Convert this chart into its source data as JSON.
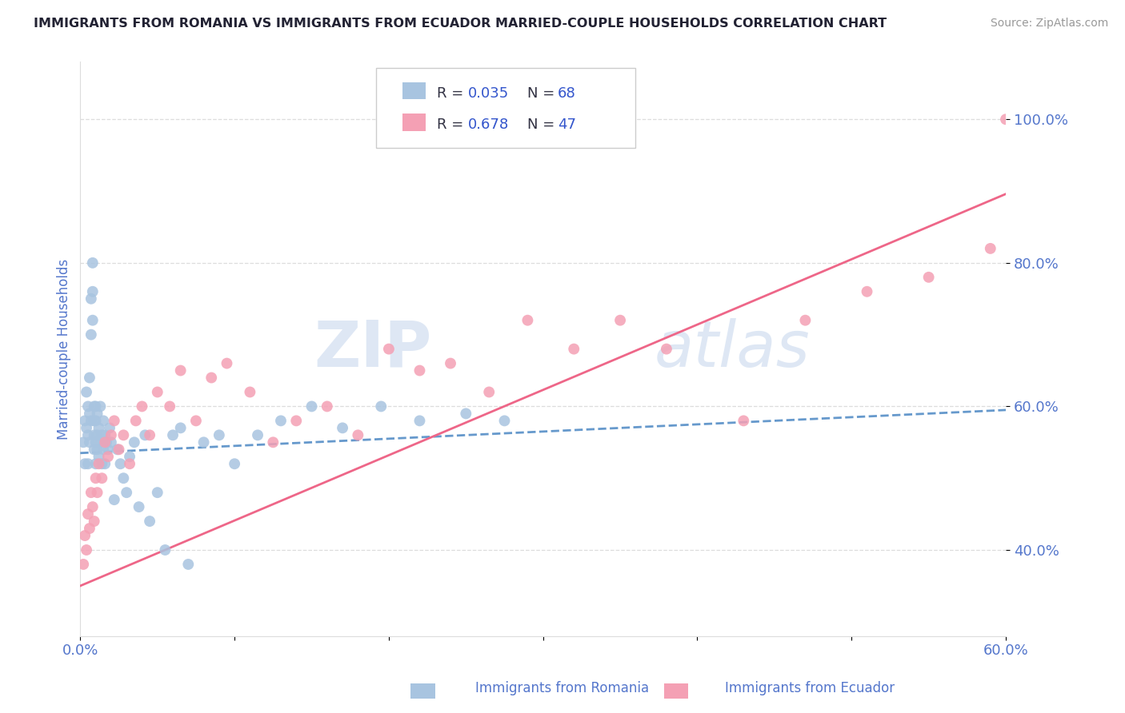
{
  "title": "IMMIGRANTS FROM ROMANIA VS IMMIGRANTS FROM ECUADOR MARRIED-COUPLE HOUSEHOLDS CORRELATION CHART",
  "source": "Source: ZipAtlas.com",
  "ylabel": "Married-couple Households",
  "xlim": [
    0.0,
    0.6
  ],
  "ylim": [
    0.28,
    1.08
  ],
  "yticks": [
    0.4,
    0.6,
    0.8,
    1.0
  ],
  "ytick_labels": [
    "40.0%",
    "60.0%",
    "80.0%",
    "100.0%"
  ],
  "xticks": [
    0.0,
    0.1,
    0.2,
    0.3,
    0.4,
    0.5,
    0.6
  ],
  "xtick_labels": [
    "0.0%",
    "",
    "",
    "",
    "",
    "",
    "60.0%"
  ],
  "romania_R": 0.035,
  "romania_N": 68,
  "ecuador_R": 0.678,
  "ecuador_N": 47,
  "romania_color": "#a8c4e0",
  "ecuador_color": "#f4a0b4",
  "romania_line_color": "#6699cc",
  "ecuador_line_color": "#ee6688",
  "axis_color": "#5577cc",
  "label_color": "#334488",
  "watermark": "ZIPatlas",
  "watermark_color": "#d0dff0",
  "background_color": "#ffffff",
  "legend_R_color": "#3355cc",
  "legend_N_color": "#3355cc",
  "grid_color": "#dddddd",
  "romania_x": [
    0.002,
    0.003,
    0.003,
    0.004,
    0.004,
    0.005,
    0.005,
    0.005,
    0.006,
    0.006,
    0.006,
    0.007,
    0.007,
    0.007,
    0.008,
    0.008,
    0.008,
    0.009,
    0.009,
    0.009,
    0.009,
    0.01,
    0.01,
    0.01,
    0.01,
    0.011,
    0.011,
    0.011,
    0.012,
    0.012,
    0.013,
    0.013,
    0.014,
    0.014,
    0.015,
    0.015,
    0.016,
    0.016,
    0.017,
    0.018,
    0.019,
    0.02,
    0.022,
    0.024,
    0.026,
    0.028,
    0.03,
    0.032,
    0.035,
    0.038,
    0.042,
    0.045,
    0.05,
    0.055,
    0.06,
    0.065,
    0.07,
    0.08,
    0.09,
    0.1,
    0.115,
    0.13,
    0.15,
    0.17,
    0.195,
    0.22,
    0.25,
    0.275
  ],
  "romania_y": [
    0.55,
    0.58,
    0.52,
    0.62,
    0.57,
    0.56,
    0.52,
    0.6,
    0.59,
    0.55,
    0.64,
    0.58,
    0.7,
    0.75,
    0.8,
    0.76,
    0.72,
    0.56,
    0.6,
    0.54,
    0.58,
    0.55,
    0.52,
    0.58,
    0.6,
    0.54,
    0.56,
    0.59,
    0.53,
    0.57,
    0.55,
    0.6,
    0.52,
    0.56,
    0.54,
    0.58,
    0.56,
    0.52,
    0.55,
    0.54,
    0.57,
    0.55,
    0.47,
    0.54,
    0.52,
    0.5,
    0.48,
    0.53,
    0.55,
    0.46,
    0.56,
    0.44,
    0.48,
    0.4,
    0.56,
    0.57,
    0.38,
    0.55,
    0.56,
    0.52,
    0.56,
    0.58,
    0.6,
    0.57,
    0.6,
    0.58,
    0.59,
    0.58
  ],
  "ecuador_x": [
    0.002,
    0.003,
    0.004,
    0.005,
    0.006,
    0.007,
    0.008,
    0.009,
    0.01,
    0.011,
    0.012,
    0.014,
    0.016,
    0.018,
    0.02,
    0.022,
    0.025,
    0.028,
    0.032,
    0.036,
    0.04,
    0.045,
    0.05,
    0.058,
    0.065,
    0.075,
    0.085,
    0.095,
    0.11,
    0.125,
    0.14,
    0.16,
    0.18,
    0.2,
    0.22,
    0.24,
    0.265,
    0.29,
    0.32,
    0.35,
    0.38,
    0.43,
    0.47,
    0.51,
    0.55,
    0.59,
    0.6
  ],
  "ecuador_y": [
    0.38,
    0.42,
    0.4,
    0.45,
    0.43,
    0.48,
    0.46,
    0.44,
    0.5,
    0.48,
    0.52,
    0.5,
    0.55,
    0.53,
    0.56,
    0.58,
    0.54,
    0.56,
    0.52,
    0.58,
    0.6,
    0.56,
    0.62,
    0.6,
    0.65,
    0.58,
    0.64,
    0.66,
    0.62,
    0.55,
    0.58,
    0.6,
    0.56,
    0.68,
    0.65,
    0.66,
    0.62,
    0.72,
    0.68,
    0.72,
    0.68,
    0.58,
    0.72,
    0.76,
    0.78,
    0.82,
    1.0
  ]
}
